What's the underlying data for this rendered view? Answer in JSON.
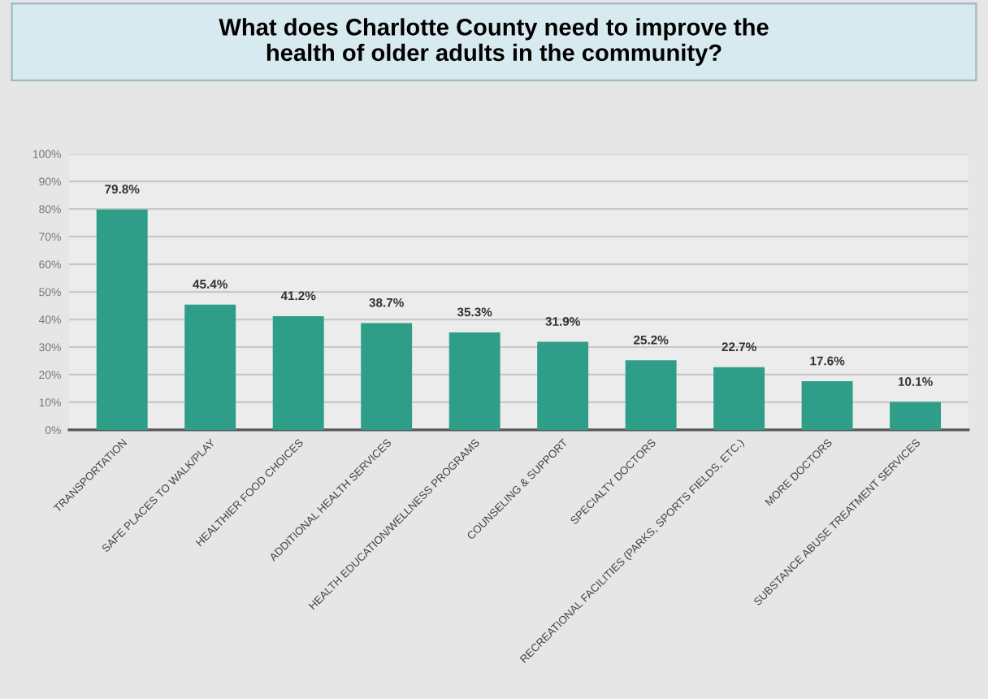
{
  "chart_data": {
    "type": "bar",
    "title": "What does Charlotte County need to improve the\nhealth of older adults in the community?",
    "categories": [
      "TRANSPORTATION",
      "SAFE PLACES TO WALK/PLAY",
      "HEALTHIER FOOD CHOICES",
      "ADDITIONAL HEALTH SERVICES",
      "HEALTH EDUCATION/WELLNESS PROGRAMS",
      "COUNSELING & SUPPORT",
      "SPECIALTY DOCTORS",
      "RECREATIONAL FACILITIES (PARKS, SPORTS FIELDS, ETC.)",
      "MORE DOCTORS",
      "SUBSTANCE ABUSE TREATMENT SERVICES"
    ],
    "values": [
      79.8,
      45.4,
      41.2,
      38.7,
      35.3,
      31.9,
      25.2,
      22.7,
      17.6,
      10.1
    ],
    "value_labels": [
      "79.8%",
      "45.4%",
      "41.2%",
      "38.7%",
      "35.3%",
      "31.9%",
      "25.2%",
      "22.7%",
      "17.6%",
      "10.1%"
    ],
    "color": "#2e9e88",
    "ylim": [
      0,
      100
    ],
    "yticks": [
      {
        "value": 0,
        "label": "0%"
      },
      {
        "value": 10,
        "label": "10%"
      },
      {
        "value": 20,
        "label": "20%"
      },
      {
        "value": 30,
        "label": "30%"
      },
      {
        "value": 40,
        "label": "40%"
      },
      {
        "value": 50,
        "label": "50%"
      },
      {
        "value": 60,
        "label": "60%"
      },
      {
        "value": 70,
        "label": "70%"
      },
      {
        "value": 80,
        "label": "80%"
      },
      {
        "value": 90,
        "label": "90%"
      },
      {
        "value": 100,
        "label": "100%"
      }
    ],
    "grid": "y",
    "legend": false
  }
}
